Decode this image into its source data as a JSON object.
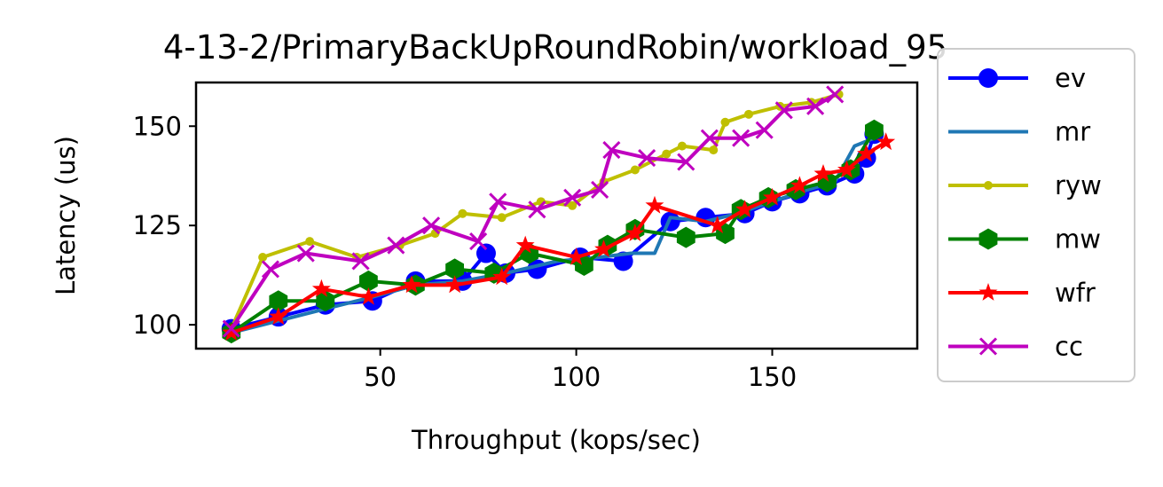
{
  "chart_data": {
    "type": "line",
    "title": "4-13-2/PrimaryBackUpRoundRobin/workload_95",
    "xlabel": "Throughput (kops/sec)",
    "ylabel": "Latency (us)",
    "xlim": [
      3,
      187
    ],
    "ylim": [
      94,
      161
    ],
    "xticks": [
      50,
      100,
      150
    ],
    "yticks": [
      100,
      125,
      150
    ],
    "grid": false,
    "legend_position": "outside right",
    "series": [
      {
        "name": "ev",
        "color": "#0000ff",
        "marker": "circle",
        "points": [
          [
            12,
            99
          ],
          [
            24,
            102
          ],
          [
            36,
            105
          ],
          [
            48,
            106
          ],
          [
            59,
            111
          ],
          [
            71,
            111
          ],
          [
            77,
            118
          ],
          [
            82,
            113
          ],
          [
            90,
            114
          ],
          [
            101,
            117
          ],
          [
            112,
            116
          ],
          [
            124,
            126
          ],
          [
            133,
            127
          ],
          [
            143,
            128
          ],
          [
            150,
            131
          ],
          [
            157,
            133
          ],
          [
            164,
            135
          ],
          [
            171,
            138
          ],
          [
            174,
            142
          ],
          [
            176,
            148
          ]
        ]
      },
      {
        "name": "mr",
        "color": "#1f77b4",
        "marker": "none",
        "points": [
          [
            12,
            98
          ],
          [
            24,
            101
          ],
          [
            36,
            104
          ],
          [
            48,
            107
          ],
          [
            59,
            110
          ],
          [
            71,
            111
          ],
          [
            82,
            113
          ],
          [
            95,
            116
          ],
          [
            106,
            117
          ],
          [
            114,
            118
          ],
          [
            120,
            118
          ],
          [
            124,
            127
          ],
          [
            133,
            126
          ],
          [
            141,
            128
          ],
          [
            150,
            131
          ],
          [
            159,
            134
          ],
          [
            166,
            136
          ],
          [
            171,
            145
          ],
          [
            176,
            147
          ]
        ]
      },
      {
        "name": "ryw",
        "color": "#bfbf00",
        "marker": "point",
        "points": [
          [
            12,
            99
          ],
          [
            20,
            117
          ],
          [
            32,
            121
          ],
          [
            44,
            117
          ],
          [
            55,
            120
          ],
          [
            64,
            123
          ],
          [
            71,
            128
          ],
          [
            81,
            127
          ],
          [
            91,
            131
          ],
          [
            99,
            130
          ],
          [
            107,
            136
          ],
          [
            115,
            139
          ],
          [
            123,
            143
          ],
          [
            127,
            145
          ],
          [
            135,
            144
          ],
          [
            138,
            151
          ],
          [
            144,
            153
          ],
          [
            152,
            155
          ],
          [
            160,
            156
          ],
          [
            167,
            158
          ]
        ]
      },
      {
        "name": "mw",
        "color": "#008000",
        "marker": "hexagon",
        "points": [
          [
            12,
            98
          ],
          [
            24,
            106
          ],
          [
            36,
            106
          ],
          [
            47,
            111
          ],
          [
            59,
            110
          ],
          [
            69,
            114
          ],
          [
            79,
            113
          ],
          [
            88,
            118
          ],
          [
            102,
            115
          ],
          [
            108,
            120
          ],
          [
            115,
            124
          ],
          [
            128,
            122
          ],
          [
            138,
            123
          ],
          [
            142,
            129
          ],
          [
            149,
            132
          ],
          [
            156,
            134
          ],
          [
            164,
            136
          ],
          [
            170,
            139
          ],
          [
            176,
            149
          ]
        ]
      },
      {
        "name": "wfr",
        "color": "#ff0000",
        "marker": "star",
        "points": [
          [
            12,
            98
          ],
          [
            24,
            102
          ],
          [
            35,
            109
          ],
          [
            47,
            107
          ],
          [
            58,
            110
          ],
          [
            69,
            110
          ],
          [
            81,
            112
          ],
          [
            87,
            120
          ],
          [
            100,
            117
          ],
          [
            107,
            119
          ],
          [
            115,
            123
          ],
          [
            120,
            130
          ],
          [
            136,
            125
          ],
          [
            143,
            129
          ],
          [
            150,
            132
          ],
          [
            157,
            135
          ],
          [
            163,
            138
          ],
          [
            169,
            139
          ],
          [
            174,
            143
          ],
          [
            179,
            146
          ]
        ]
      },
      {
        "name": "cc",
        "color": "#bf00bf",
        "marker": "x",
        "points": [
          [
            12,
            99
          ],
          [
            22,
            114
          ],
          [
            31,
            118
          ],
          [
            45,
            116
          ],
          [
            54,
            120
          ],
          [
            63,
            125
          ],
          [
            75,
            121
          ],
          [
            80,
            131
          ],
          [
            90,
            129
          ],
          [
            99,
            132
          ],
          [
            106,
            134
          ],
          [
            109,
            144
          ],
          [
            118,
            142
          ],
          [
            128,
            141
          ],
          [
            134,
            147
          ],
          [
            142,
            147
          ],
          [
            148,
            149
          ],
          [
            153,
            154
          ],
          [
            161,
            155
          ],
          [
            166,
            158
          ]
        ]
      }
    ]
  }
}
